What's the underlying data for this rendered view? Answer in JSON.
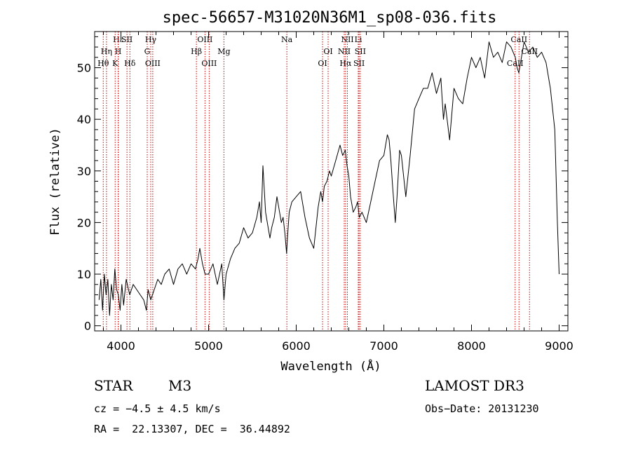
{
  "chart_data": {
    "type": "line",
    "title": "spec-56657-M31020N36M1_sp08-036.fits",
    "xlabel": "Wavelength (Å)",
    "ylabel": "Flux (relative)",
    "xlim": [
      3700,
      9100
    ],
    "ylim": [
      -1,
      57
    ],
    "xticks": [
      4000,
      5000,
      6000,
      7000,
      8000,
      9000
    ],
    "xtick_labels": [
      "4000",
      "5000",
      "6000",
      "7000",
      "8000",
      "9000"
    ],
    "yticks": [
      0,
      10,
      20,
      30,
      40,
      50
    ],
    "ytick_labels": [
      "0",
      "10",
      "20",
      "30",
      "40",
      "50"
    ],
    "line_color": "#000000",
    "marker_color": "#cc0000",
    "series": [
      {
        "name": "flux",
        "x": [
          3750,
          3770,
          3790,
          3810,
          3830,
          3850,
          3870,
          3890,
          3910,
          3930,
          3950,
          3970,
          3990,
          4010,
          4030,
          4060,
          4100,
          4140,
          4180,
          4220,
          4260,
          4290,
          4310,
          4340,
          4380,
          4420,
          4460,
          4500,
          4550,
          4600,
          4650,
          4700,
          4750,
          4800,
          4850,
          4880,
          4900,
          4930,
          4960,
          5000,
          5050,
          5100,
          5150,
          5175,
          5200,
          5250,
          5300,
          5350,
          5400,
          5450,
          5500,
          5550,
          5580,
          5600,
          5620,
          5650,
          5680,
          5700,
          5720,
          5750,
          5780,
          5800,
          5830,
          5850,
          5870,
          5890,
          5900,
          5920,
          5950,
          6000,
          6050,
          6100,
          6150,
          6200,
          6250,
          6280,
          6300,
          6320,
          6350,
          6380,
          6400,
          6450,
          6500,
          6530,
          6560,
          6580,
          6600,
          6620,
          6650,
          6680,
          6700,
          6720,
          6750,
          6800,
          6850,
          6900,
          6950,
          7000,
          7020,
          7040,
          7060,
          7080,
          7100,
          7130,
          7150,
          7180,
          7200,
          7250,
          7300,
          7350,
          7400,
          7450,
          7500,
          7550,
          7600,
          7650,
          7680,
          7700,
          7750,
          7800,
          7850,
          7900,
          7950,
          8000,
          8050,
          8100,
          8150,
          8200,
          8250,
          8300,
          8350,
          8400,
          8450,
          8500,
          8520,
          8540,
          8560,
          8600,
          8650,
          8700,
          8750,
          8800,
          8850,
          8900,
          8950,
          8980,
          9000
        ],
        "y": [
          5,
          9,
          3,
          10,
          6,
          9,
          2,
          8,
          5,
          11,
          7,
          6,
          3,
          8,
          4,
          9,
          6,
          8,
          7,
          6,
          5,
          3,
          7,
          5,
          7,
          9,
          8,
          10,
          11,
          8,
          11,
          12,
          10,
          12,
          11,
          13,
          15,
          12,
          10,
          10,
          12,
          8,
          12,
          5,
          10,
          13,
          15,
          16,
          19,
          17,
          18,
          21,
          24,
          20,
          31,
          22,
          19,
          17,
          19,
          21,
          25,
          23,
          20,
          21,
          18,
          14,
          17,
          22,
          24,
          25,
          26,
          21,
          17,
          15,
          23,
          26,
          24,
          27,
          28,
          30,
          29,
          32,
          35,
          33,
          34,
          31,
          29,
          25,
          22,
          23,
          24,
          21,
          22,
          20,
          24,
          28,
          32,
          33,
          35,
          37,
          36,
          32,
          27,
          20,
          25,
          34,
          33,
          25,
          33,
          42,
          44,
          46,
          46,
          49,
          45,
          48,
          40,
          43,
          36,
          46,
          44,
          43,
          48,
          52,
          50,
          52,
          48,
          55,
          52,
          53,
          51,
          55,
          54,
          52,
          50,
          49,
          51,
          55,
          53,
          54,
          52,
          53,
          51,
          46,
          38,
          20,
          10
        ]
      }
    ],
    "line_markers": [
      {
        "label": "Hε",
        "wl": 3970,
        "row": 0
      },
      {
        "label": "SII",
        "wl": 4069,
        "row": 0
      },
      {
        "label": "Hγ",
        "wl": 4340,
        "row": 0
      },
      {
        "label": "OIII",
        "wl": 4959,
        "row": 0
      },
      {
        "label": "Na",
        "wl": 5893,
        "row": 0
      },
      {
        "label": "NII",
        "wl": 6584,
        "row": 0
      },
      {
        "label": "Li",
        "wl": 6708,
        "row": 0
      },
      {
        "label": "CaII",
        "wl": 8542,
        "row": 0
      },
      {
        "label": "Hη",
        "wl": 3835,
        "row": 1
      },
      {
        "label": "H",
        "wl": 3968,
        "row": 1
      },
      {
        "label": "G",
        "wl": 4300,
        "row": 1
      },
      {
        "label": "Hβ",
        "wl": 4861,
        "row": 1
      },
      {
        "label": "Mg",
        "wl": 5175,
        "row": 1
      },
      {
        "label": "OI",
        "wl": 6364,
        "row": 1
      },
      {
        "label": "NII",
        "wl": 6548,
        "row": 1
      },
      {
        "label": "SII",
        "wl": 6731,
        "row": 1
      },
      {
        "label": "CaII",
        "wl": 8662,
        "row": 1
      },
      {
        "label": "Hθ",
        "wl": 3798,
        "row": 2
      },
      {
        "label": "K",
        "wl": 3934,
        "row": 2
      },
      {
        "label": "Hδ",
        "wl": 4102,
        "row": 2
      },
      {
        "label": "OIII",
        "wl": 4363,
        "row": 2
      },
      {
        "label": "OIII",
        "wl": 5007,
        "row": 2
      },
      {
        "label": "OI",
        "wl": 6300,
        "row": 2
      },
      {
        "label": "Hα",
        "wl": 6563,
        "row": 2
      },
      {
        "label": "SII",
        "wl": 6717,
        "row": 2
      },
      {
        "label": "CaII",
        "wl": 8498,
        "row": 2
      }
    ]
  },
  "info": {
    "class": "STAR",
    "subclass": "M3",
    "survey": "LAMOST DR3",
    "cz": "cz = −4.5 ± 4.5 km/s",
    "obs_date": "Obs−Date: 20131230",
    "coords": "RA =  22.13307, DEC =  36.44892"
  }
}
